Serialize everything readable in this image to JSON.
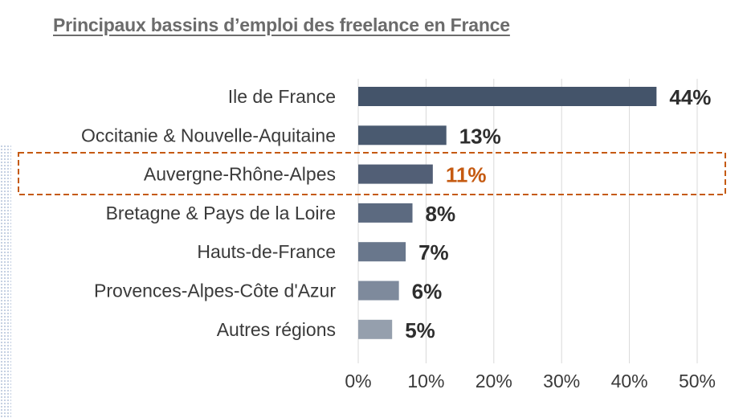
{
  "title": "Principaux bassins d’emploi des freelance en France",
  "chart_data": {
    "type": "bar",
    "orientation": "horizontal",
    "title": "Principaux bassins d’emploi des freelance en France",
    "xlabel": "",
    "ylabel": "",
    "categories": [
      "Ile de France",
      "Occitanie & Nouvelle-Aquitaine",
      "Auvergne-Rhône-Alpes",
      "Bretagne & Pays de la Loire",
      "Hauts-de-France",
      "Provences-Alpes-Côte d'Azur",
      "Autres régions"
    ],
    "values": [
      44,
      13,
      11,
      8,
      7,
      6,
      5
    ],
    "value_labels": [
      "44%",
      "13%",
      "11%",
      "8%",
      "7%",
      "6%",
      "5%"
    ],
    "xlim": [
      0,
      50
    ],
    "x_ticks": [
      "0%",
      "10%",
      "20%",
      "30%",
      "40%",
      "50%"
    ],
    "grid": "vertical",
    "highlight": {
      "category": "Auvergne-Rhône-Alpes",
      "color": "#c55a11",
      "frame": "dashed"
    },
    "bar_colors": [
      "#44546a",
      "#4a5a70",
      "#525f76",
      "#5c6a80",
      "#69778c",
      "#7e8a9c",
      "#959fad"
    ]
  }
}
